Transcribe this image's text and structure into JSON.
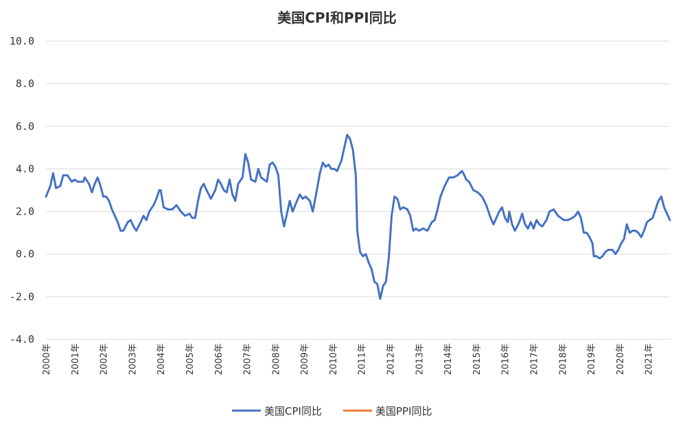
{
  "chart_data": {
    "type": "line",
    "title": "美国CPI和PPI同比",
    "xlabel": "",
    "ylabel": "",
    "ylim": [
      -4.0,
      10.0
    ],
    "yticks": [
      "10.0",
      "8.0",
      "6.0",
      "4.0",
      "2.0",
      "0.0",
      "-2.0",
      "-4.0"
    ],
    "xticks": [
      "2000年",
      "2001年",
      "2002年",
      "2003年",
      "2004年",
      "2005年",
      "2006年",
      "2007年",
      "2008年",
      "2009年",
      "2010年",
      "2011年",
      "2012年",
      "2013年",
      "2014年",
      "2015年",
      "2016年",
      "2017年",
      "2018年",
      "2019年",
      "2020年",
      "2021年"
    ],
    "x_range": [
      2000.0,
      2021.75
    ],
    "grid": true,
    "legend_position": "bottom",
    "series": [
      {
        "name": "美国CPI同比",
        "color": "#4472c4",
        "points": [
          [
            2000.0,
            2.7
          ],
          [
            2000.15,
            3.2
          ],
          [
            2000.25,
            3.8
          ],
          [
            2000.35,
            3.1
          ],
          [
            2000.5,
            3.2
          ],
          [
            2000.6,
            3.7
          ],
          [
            2000.75,
            3.7
          ],
          [
            2000.9,
            3.4
          ],
          [
            2001.0,
            3.5
          ],
          [
            2001.1,
            3.4
          ],
          [
            2001.3,
            3.4
          ],
          [
            2001.35,
            3.6
          ],
          [
            2001.5,
            3.3
          ],
          [
            2001.6,
            2.9
          ],
          [
            2001.7,
            3.3
          ],
          [
            2001.8,
            3.6
          ],
          [
            2001.9,
            3.2
          ],
          [
            2002.0,
            2.7
          ],
          [
            2002.1,
            2.7
          ],
          [
            2002.2,
            2.5
          ],
          [
            2002.3,
            2.1
          ],
          [
            2002.4,
            1.8
          ],
          [
            2002.5,
            1.5
          ],
          [
            2002.6,
            1.1
          ],
          [
            2002.7,
            1.1
          ],
          [
            2002.85,
            1.5
          ],
          [
            2002.95,
            1.6
          ],
          [
            2003.05,
            1.3
          ],
          [
            2003.15,
            1.1
          ],
          [
            2003.3,
            1.5
          ],
          [
            2003.4,
            1.8
          ],
          [
            2003.5,
            1.6
          ],
          [
            2003.6,
            2.0
          ],
          [
            2003.75,
            2.3
          ],
          [
            2003.85,
            2.6
          ],
          [
            2003.95,
            3.0
          ],
          [
            2004.0,
            3.0
          ],
          [
            2004.1,
            2.2
          ],
          [
            2004.25,
            2.1
          ],
          [
            2004.4,
            2.1
          ],
          [
            2004.55,
            2.3
          ],
          [
            2004.7,
            2.0
          ],
          [
            2004.85,
            1.8
          ],
          [
            2005.0,
            1.9
          ],
          [
            2005.1,
            1.7
          ],
          [
            2005.2,
            1.7
          ],
          [
            2005.3,
            2.5
          ],
          [
            2005.4,
            3.1
          ],
          [
            2005.5,
            3.3
          ],
          [
            2005.6,
            3.0
          ],
          [
            2005.75,
            2.6
          ],
          [
            2005.9,
            3.0
          ],
          [
            2006.0,
            3.5
          ],
          [
            2006.1,
            3.3
          ],
          [
            2006.2,
            3.0
          ],
          [
            2006.3,
            2.9
          ],
          [
            2006.4,
            3.5
          ],
          [
            2006.5,
            2.8
          ],
          [
            2006.6,
            2.5
          ],
          [
            2006.7,
            3.3
          ],
          [
            2006.85,
            3.6
          ],
          [
            2006.95,
            4.7
          ],
          [
            2007.05,
            4.3
          ],
          [
            2007.15,
            3.5
          ],
          [
            2007.3,
            3.4
          ],
          [
            2007.4,
            4.0
          ],
          [
            2007.5,
            3.6
          ],
          [
            2007.7,
            3.4
          ],
          [
            2007.8,
            4.2
          ],
          [
            2007.9,
            4.3
          ],
          [
            2008.0,
            4.1
          ],
          [
            2008.1,
            3.7
          ],
          [
            2008.2,
            2.0
          ],
          [
            2008.3,
            1.3
          ],
          [
            2008.4,
            1.9
          ],
          [
            2008.5,
            2.5
          ],
          [
            2008.6,
            2.0
          ],
          [
            2008.75,
            2.5
          ],
          [
            2008.85,
            2.8
          ],
          [
            2008.95,
            2.6
          ],
          [
            2009.05,
            2.7
          ],
          [
            2009.2,
            2.5
          ],
          [
            2009.3,
            2.0
          ],
          [
            2009.4,
            2.7
          ],
          [
            2009.55,
            3.8
          ],
          [
            2009.65,
            4.3
          ],
          [
            2009.75,
            4.1
          ],
          [
            2009.85,
            4.2
          ],
          [
            2009.95,
            4.0
          ],
          [
            2010.05,
            4.0
          ],
          [
            2010.15,
            3.9
          ],
          [
            2010.3,
            4.4
          ],
          [
            2010.5,
            5.6
          ],
          [
            2010.6,
            5.4
          ],
          [
            2010.7,
            4.9
          ],
          [
            2010.8,
            3.7
          ],
          [
            2010.85,
            1.1
          ],
          [
            2010.95,
            0.1
          ],
          [
            2011.05,
            -0.1
          ],
          [
            2011.15,
            0.0
          ],
          [
            2011.25,
            -0.4
          ],
          [
            2011.35,
            -0.7
          ],
          [
            2011.45,
            -1.3
          ],
          [
            2011.55,
            -1.4
          ],
          [
            2011.65,
            -2.1
          ],
          [
            2011.75,
            -1.5
          ],
          [
            2011.85,
            -1.3
          ],
          [
            2011.95,
            -0.2
          ],
          [
            2012.05,
            1.8
          ],
          [
            2012.15,
            2.7
          ],
          [
            2012.25,
            2.6
          ],
          [
            2012.35,
            2.1
          ],
          [
            2012.45,
            2.2
          ],
          [
            2012.6,
            2.1
          ],
          [
            2012.7,
            1.8
          ],
          [
            2012.8,
            1.1
          ],
          [
            2012.9,
            1.2
          ],
          [
            2013.0,
            1.1
          ],
          [
            2013.15,
            1.2
          ],
          [
            2013.3,
            1.1
          ],
          [
            2013.45,
            1.5
          ],
          [
            2013.55,
            1.6
          ],
          [
            2013.65,
            2.1
          ],
          [
            2013.75,
            2.7
          ],
          [
            2013.9,
            3.2
          ],
          [
            2014.05,
            3.6
          ],
          [
            2014.2,
            3.6
          ],
          [
            2014.35,
            3.7
          ],
          [
            2014.5,
            3.9
          ],
          [
            2014.55,
            3.8
          ],
          [
            2014.65,
            3.5
          ],
          [
            2014.75,
            3.4
          ],
          [
            2014.9,
            3.0
          ],
          [
            2015.05,
            2.9
          ],
          [
            2015.2,
            2.7
          ],
          [
            2015.35,
            2.3
          ],
          [
            2015.5,
            1.7
          ],
          [
            2015.6,
            1.4
          ],
          [
            2015.7,
            1.7
          ],
          [
            2015.8,
            2.0
          ],
          [
            2015.9,
            2.2
          ],
          [
            2016.0,
            1.7
          ],
          [
            2016.1,
            1.5
          ],
          [
            2016.15,
            2.0
          ],
          [
            2016.25,
            1.4
          ],
          [
            2016.35,
            1.1
          ],
          [
            2016.5,
            1.5
          ],
          [
            2016.6,
            1.9
          ],
          [
            2016.7,
            1.4
          ],
          [
            2016.8,
            1.2
          ],
          [
            2016.9,
            1.5
          ],
          [
            2017.0,
            1.2
          ],
          [
            2017.1,
            1.6
          ],
          [
            2017.2,
            1.4
          ],
          [
            2017.3,
            1.3
          ],
          [
            2017.45,
            1.6
          ],
          [
            2017.55,
            2.0
          ],
          [
            2017.7,
            2.1
          ],
          [
            2017.85,
            1.8
          ],
          [
            2017.95,
            1.7
          ],
          [
            2018.05,
            1.6
          ],
          [
            2018.2,
            1.6
          ],
          [
            2018.35,
            1.7
          ],
          [
            2018.45,
            1.8
          ],
          [
            2018.55,
            2.0
          ],
          [
            2018.65,
            1.7
          ],
          [
            2018.75,
            1.0
          ],
          [
            2018.85,
            1.0
          ],
          [
            2018.95,
            0.8
          ],
          [
            2019.05,
            0.5
          ],
          [
            2019.1,
            -0.1
          ],
          [
            2019.2,
            -0.1
          ],
          [
            2019.3,
            -0.2
          ],
          [
            2019.4,
            -0.1
          ],
          [
            2019.5,
            0.1
          ],
          [
            2019.6,
            0.2
          ],
          [
            2019.75,
            0.2
          ],
          [
            2019.85,
            0.0
          ],
          [
            2019.95,
            0.2
          ],
          [
            2020.05,
            0.5
          ],
          [
            2020.15,
            0.7
          ],
          [
            2020.25,
            1.4
          ],
          [
            2020.35,
            1.0
          ],
          [
            2020.45,
            1.1
          ],
          [
            2020.55,
            1.1
          ],
          [
            2020.65,
            1.0
          ],
          [
            2020.75,
            0.8
          ],
          [
            2020.85,
            1.1
          ],
          [
            2020.95,
            1.5
          ],
          [
            2021.05,
            1.6
          ],
          [
            2021.15,
            1.7
          ],
          [
            2021.25,
            2.1
          ],
          [
            2021.35,
            2.5
          ],
          [
            2021.45,
            2.7
          ],
          [
            2021.55,
            2.2
          ],
          [
            2021.65,
            1.9
          ],
          [
            2021.75,
            1.6
          ]
        ]
      },
      {
        "name": "美国PPI同比",
        "color": "#ed7d31",
        "points": []
      }
    ]
  },
  "legend": {
    "cpi_label": "美国CPI同比",
    "ppi_label": "美国PPI同比"
  }
}
